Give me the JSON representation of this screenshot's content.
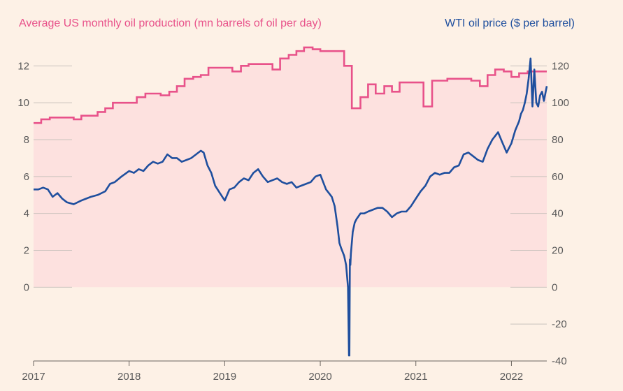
{
  "chart_data": {
    "type": "line",
    "legend": {
      "left": "Average US monthly oil production (mn barrels of oil per day)",
      "right": "WTI oil price ($ per barrel)"
    },
    "colors": {
      "production": "#e8528a",
      "production_fill": "#fde1df",
      "price": "#1f4f9e",
      "background": "#fdf1e6"
    },
    "x_ticks": [
      "2017",
      "2018",
      "2019",
      "2020",
      "2021",
      "2022"
    ],
    "xlim": [
      2017.0,
      2022.37
    ],
    "y_left": {
      "ticks": [
        "0",
        "2",
        "4",
        "6",
        "8",
        "10",
        "12"
      ],
      "ylim": [
        -4,
        13.3
      ]
    },
    "y_right": {
      "ticks": [
        "-40",
        "-20",
        "0",
        "20",
        "40",
        "60",
        "80",
        "100",
        "120"
      ],
      "ylim": [
        -40,
        133
      ]
    },
    "series": [
      {
        "name": "Average US monthly oil production",
        "axis": "left",
        "style": "step",
        "x": [
          2017.0,
          2017.08,
          2017.17,
          2017.25,
          2017.33,
          2017.42,
          2017.5,
          2017.58,
          2017.67,
          2017.75,
          2017.83,
          2017.92,
          2018.0,
          2018.08,
          2018.17,
          2018.25,
          2018.33,
          2018.42,
          2018.5,
          2018.58,
          2018.67,
          2018.75,
          2018.83,
          2018.92,
          2019.0,
          2019.08,
          2019.17,
          2019.25,
          2019.33,
          2019.42,
          2019.5,
          2019.58,
          2019.67,
          2019.75,
          2019.83,
          2019.92,
          2020.0,
          2020.08,
          2020.17,
          2020.25,
          2020.33,
          2020.42,
          2020.5,
          2020.58,
          2020.67,
          2020.75,
          2020.83,
          2020.92,
          2021.0,
          2021.08,
          2021.17,
          2021.25,
          2021.33,
          2021.42,
          2021.5,
          2021.58,
          2021.67,
          2021.75,
          2021.83,
          2021.92,
          2022.0,
          2022.08,
          2022.17,
          2022.25,
          2022.37
        ],
        "values": [
          8.9,
          9.1,
          9.2,
          9.2,
          9.2,
          9.1,
          9.3,
          9.3,
          9.5,
          9.7,
          10.0,
          10.0,
          10.0,
          10.3,
          10.5,
          10.5,
          10.4,
          10.6,
          10.9,
          11.3,
          11.4,
          11.5,
          11.9,
          11.9,
          11.9,
          11.7,
          12.0,
          12.1,
          12.1,
          12.1,
          11.8,
          12.4,
          12.6,
          12.8,
          13.0,
          12.9,
          12.8,
          12.8,
          12.8,
          12.0,
          9.7,
          10.3,
          11.0,
          10.5,
          10.9,
          10.6,
          11.1,
          11.1,
          11.1,
          9.8,
          11.2,
          11.2,
          11.3,
          11.3,
          11.3,
          11.2,
          10.9,
          11.5,
          11.8,
          11.7,
          11.4,
          11.6,
          11.7,
          11.7,
          11.7
        ]
      },
      {
        "name": "WTI oil price",
        "axis": "right",
        "style": "line",
        "x": [
          2017.0,
          2017.05,
          2017.1,
          2017.15,
          2017.2,
          2017.25,
          2017.3,
          2017.35,
          2017.42,
          2017.5,
          2017.55,
          2017.6,
          2017.67,
          2017.75,
          2017.8,
          2017.85,
          2017.92,
          2018.0,
          2018.05,
          2018.1,
          2018.15,
          2018.2,
          2018.25,
          2018.3,
          2018.35,
          2018.4,
          2018.45,
          2018.5,
          2018.55,
          2018.6,
          2018.65,
          2018.7,
          2018.75,
          2018.78,
          2018.82,
          2018.86,
          2018.9,
          2018.95,
          2019.0,
          2019.05,
          2019.1,
          2019.15,
          2019.2,
          2019.25,
          2019.3,
          2019.35,
          2019.4,
          2019.45,
          2019.5,
          2019.55,
          2019.6,
          2019.65,
          2019.7,
          2019.75,
          2019.8,
          2019.85,
          2019.9,
          2019.95,
          2020.0,
          2020.03,
          2020.06,
          2020.09,
          2020.12,
          2020.15,
          2020.18,
          2020.2,
          2020.22,
          2020.25,
          2020.27,
          2020.29,
          2020.3,
          2020.305,
          2020.31,
          2020.315,
          2020.32,
          2020.34,
          2020.36,
          2020.38,
          2020.42,
          2020.46,
          2020.5,
          2020.55,
          2020.6,
          2020.65,
          2020.7,
          2020.75,
          2020.8,
          2020.85,
          2020.9,
          2020.95,
          2021.0,
          2021.05,
          2021.1,
          2021.15,
          2021.2,
          2021.25,
          2021.3,
          2021.35,
          2021.4,
          2021.45,
          2021.5,
          2021.55,
          2021.6,
          2021.65,
          2021.7,
          2021.75,
          2021.8,
          2021.83,
          2021.86,
          2021.9,
          2021.95,
          2022.0,
          2022.04,
          2022.08,
          2022.1,
          2022.12,
          2022.14,
          2022.16,
          2022.18,
          2022.2,
          2022.22,
          2022.24,
          2022.26,
          2022.28,
          2022.3,
          2022.32,
          2022.34,
          2022.37
        ],
        "values": [
          53,
          53,
          54,
          53,
          49,
          51,
          48,
          46,
          45,
          47,
          48,
          49,
          50,
          52,
          56,
          57,
          60,
          63,
          62,
          64,
          63,
          66,
          68,
          67,
          68,
          72,
          70,
          70,
          68,
          69,
          70,
          72,
          74,
          73,
          66,
          62,
          55,
          51,
          47,
          53,
          54,
          57,
          59,
          58,
          62,
          64,
          60,
          57,
          58,
          59,
          57,
          56,
          57,
          54,
          55,
          56,
          57,
          60,
          61,
          57,
          53,
          51,
          49,
          44,
          33,
          24,
          21,
          17,
          12,
          0,
          -37,
          -37,
          15,
          12,
          18,
          30,
          35,
          37,
          40,
          40,
          41,
          42,
          43,
          43,
          41,
          38,
          40,
          41,
          41,
          44,
          48,
          52,
          55,
          60,
          62,
          61,
          62,
          62,
          65,
          66,
          72,
          73,
          71,
          69,
          68,
          75,
          80,
          82,
          84,
          79,
          73,
          78,
          85,
          90,
          94,
          96,
          100,
          105,
          113,
          124,
          98,
          118,
          100,
          98,
          104,
          106,
          101,
          109
        ]
      }
    ]
  }
}
